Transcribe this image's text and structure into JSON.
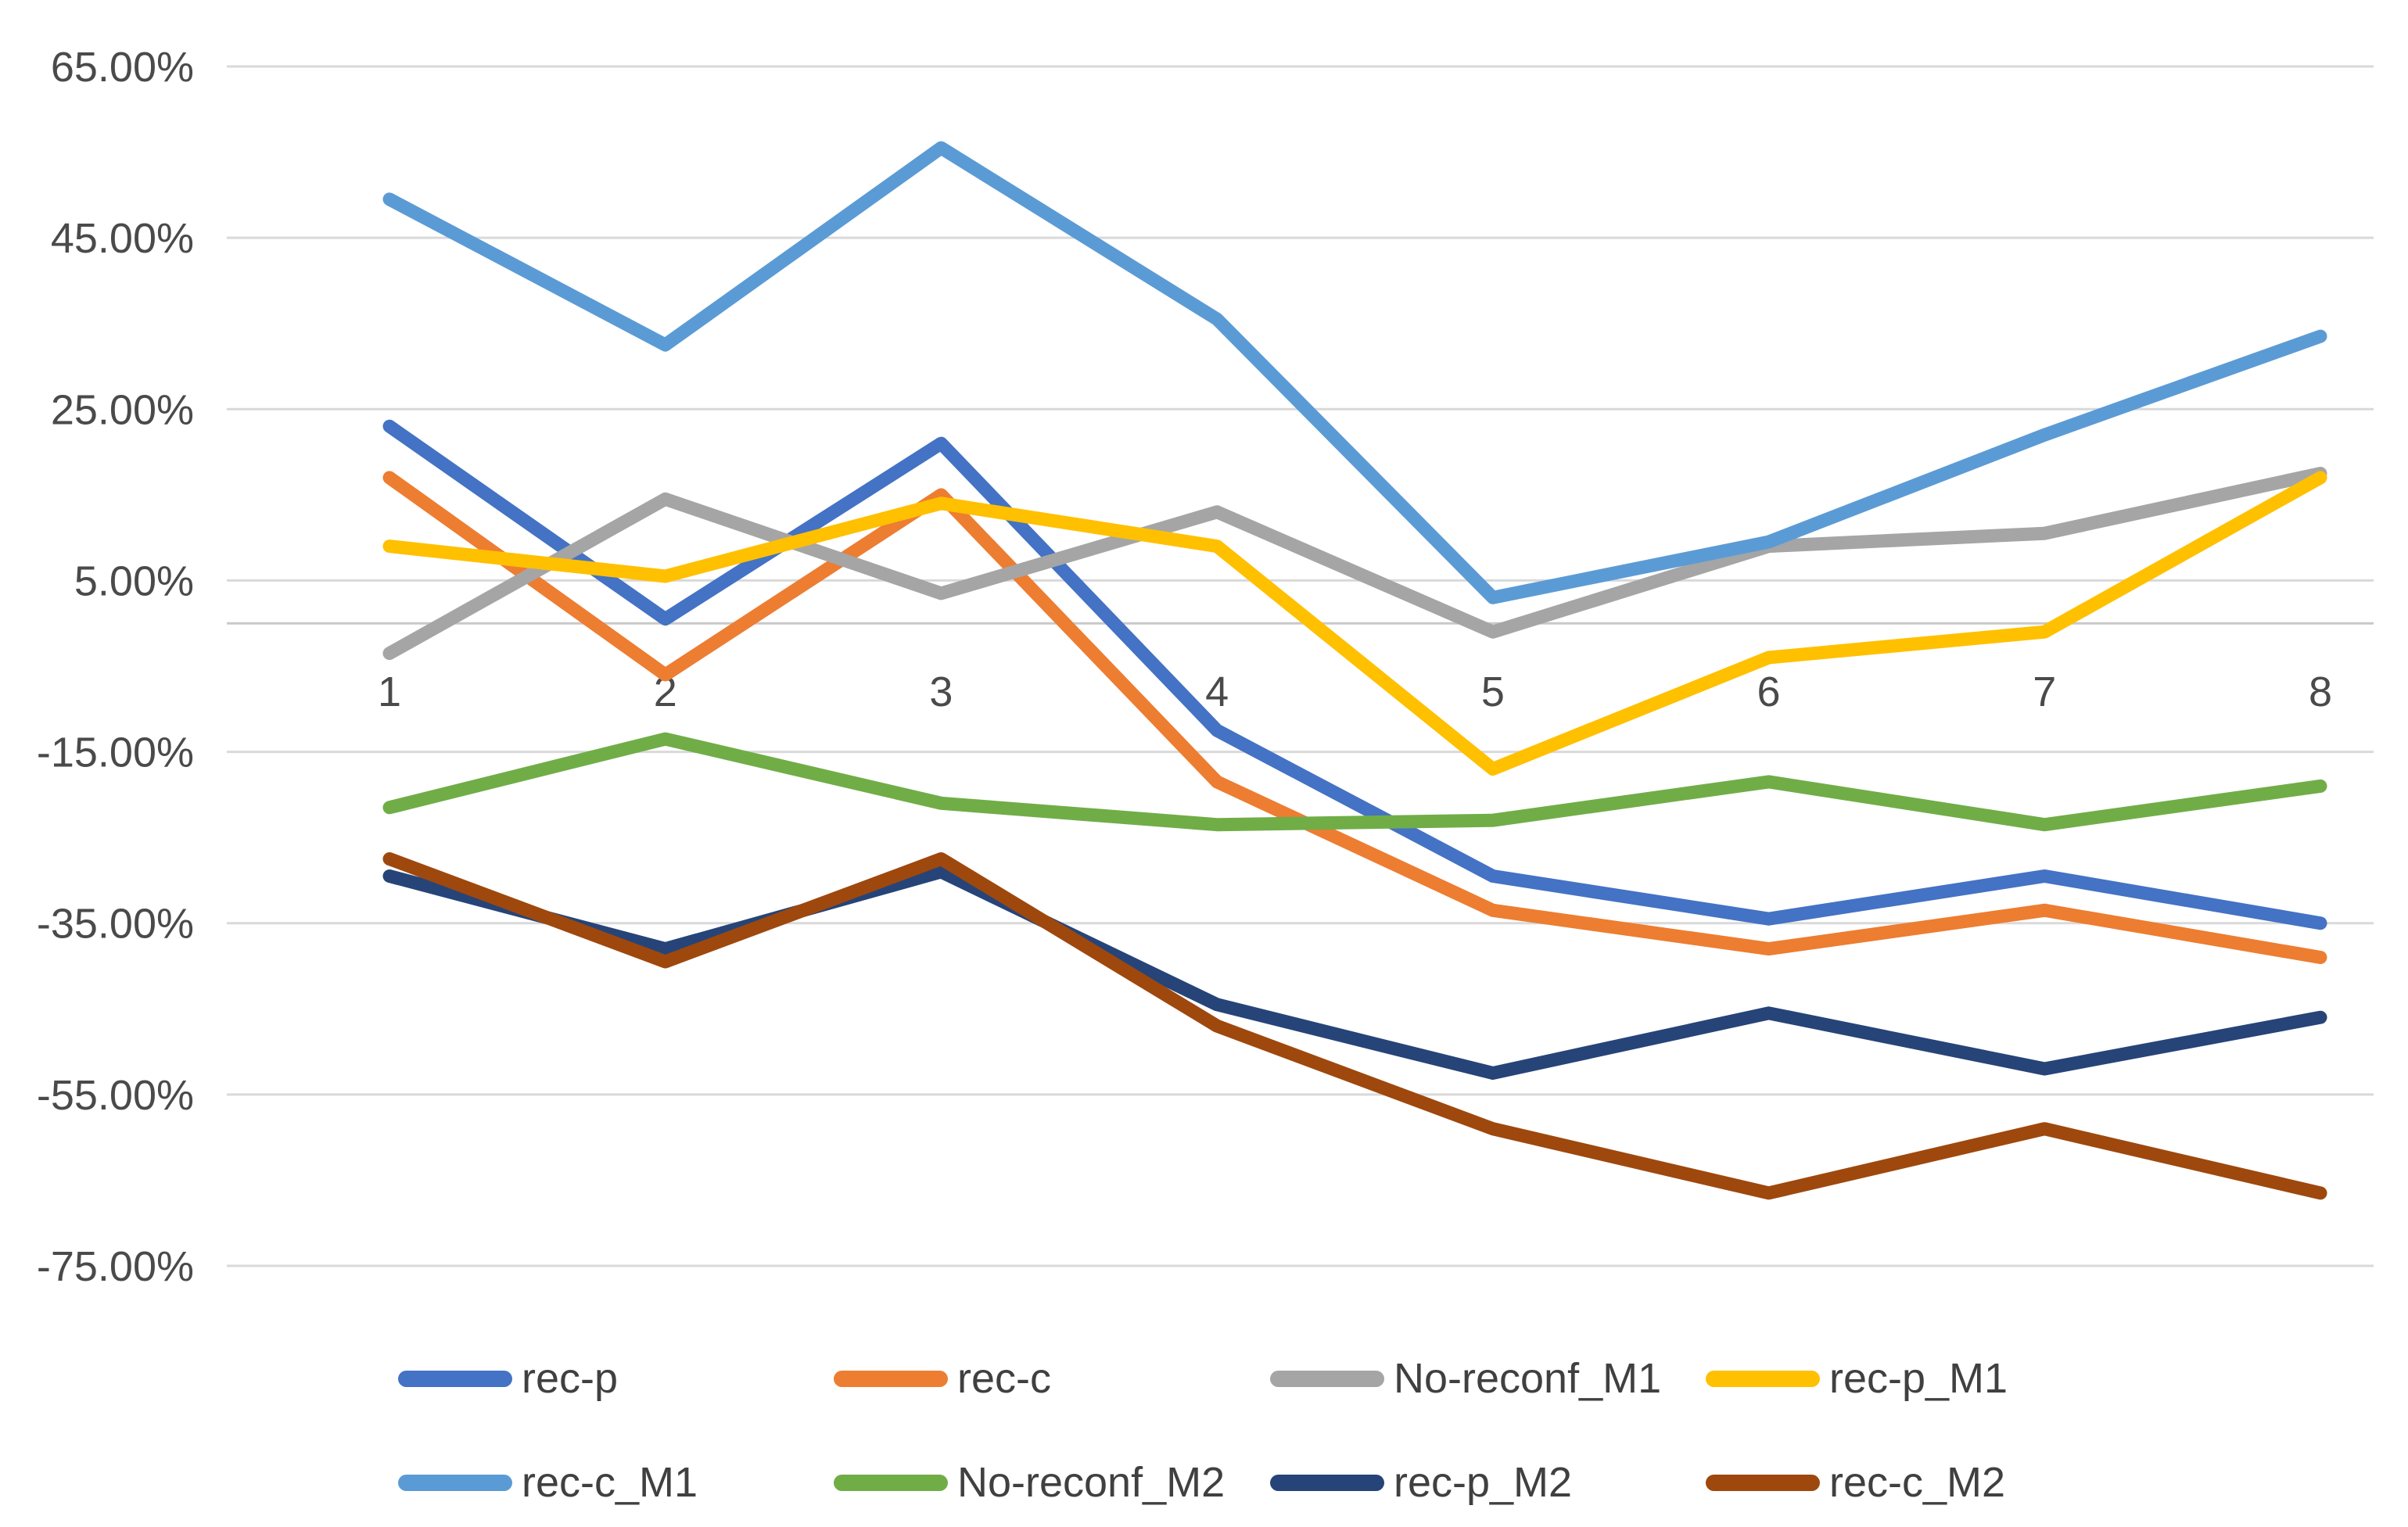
{
  "chart_data": {
    "type": "line",
    "title": "",
    "xlabel": "",
    "ylabel": "",
    "categories": [
      "1",
      "2",
      "3",
      "4",
      "5",
      "6",
      "7",
      "8"
    ],
    "y_axis": {
      "unit": "percent",
      "min": -75,
      "max": 65,
      "tick_step": 20,
      "tick_values": [
        65,
        45,
        25,
        5,
        -15,
        -35,
        -55,
        -75
      ],
      "tick_labels": [
        "65.00%",
        "45.00%",
        "25.00%",
        "5.00%",
        "-15.00%",
        "-35.00%",
        "-55.00%",
        "-75.00%"
      ]
    },
    "grid": true,
    "zero_axis_line": true,
    "legend_position": "bottom",
    "series": [
      {
        "name": "rec-p",
        "color": "#4472C4",
        "values": [
          23,
          0.5,
          21,
          -12.5,
          -29.5,
          -34.5,
          -29.5,
          -35
        ]
      },
      {
        "name": "rec-c",
        "color": "#ED7D31",
        "values": [
          17,
          -6,
          15,
          -18.5,
          -33.5,
          -38,
          -33.5,
          -39
        ]
      },
      {
        "name": "No-reconf_M1",
        "color": "#A5A5A5",
        "values": [
          -3.5,
          14.5,
          3.5,
          13,
          -1,
          9,
          10.5,
          17.5
        ]
      },
      {
        "name": "rec-p_M1",
        "color": "#FFC000",
        "values": [
          9,
          5.5,
          14,
          9,
          -17,
          -4,
          -1,
          17
        ]
      },
      {
        "name": "rec-c_M1",
        "color": "#5B9BD5",
        "values": [
          49.5,
          32.5,
          55.5,
          35.5,
          3,
          9.5,
          22,
          33.5
        ]
      },
      {
        "name": "No-reconf_M2",
        "color": "#70AD47",
        "values": [
          -21.5,
          -13.5,
          -21,
          -23.5,
          -23,
          -18.5,
          -23.5,
          -19
        ]
      },
      {
        "name": "rec-p_M2",
        "color": "#264478",
        "values": [
          -29.5,
          -38,
          -29,
          -44.5,
          -52.5,
          -45.5,
          -52,
          -46
        ]
      },
      {
        "name": "rec-c_M2",
        "color": "#9E480E",
        "values": [
          -27.5,
          -39.5,
          -27.5,
          -47,
          -59,
          -66.5,
          -59,
          -66.5
        ]
      }
    ],
    "legend_rows": [
      [
        "rec-p",
        "rec-c",
        "No-reconf_M1",
        "rec-p_M1"
      ],
      [
        "rec-c_M1",
        "No-reconf_M2",
        "rec-p_M2",
        "rec-c_M2"
      ]
    ]
  }
}
